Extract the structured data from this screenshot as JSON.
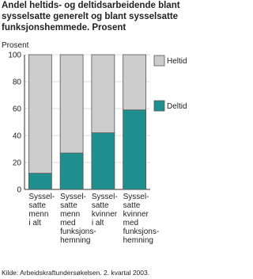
{
  "chart_data": {
    "type": "stacked_bar",
    "title": [
      "Andel heltids- og deltidsarbeidende blant",
      "sysselsatte generelt og blant sysselsatte",
      "funksjonshemmede. Prosent"
    ],
    "y_label": "Prosent",
    "categories": [
      [
        "Syssel-",
        "satte",
        "menn",
        "i alt"
      ],
      [
        "Syssel-",
        "satte",
        "menn",
        "med",
        "funksjons-",
        "hemning"
      ],
      [
        "Syssel-",
        "satte",
        "kvinner",
        "i alt"
      ],
      [
        "Syssel-",
        "satte",
        "kvinner",
        "med",
        "funksjons-",
        "hemning"
      ]
    ],
    "series": [
      {
        "name": "Deltid",
        "color": "#1f8f8f",
        "values": [
          12,
          27,
          42,
          59
        ]
      },
      {
        "name": "Heltid",
        "color": "#cccccc",
        "values": [
          88,
          73,
          58,
          41
        ]
      }
    ],
    "ylim": [
      0,
      100
    ],
    "yticks": [
      0,
      20,
      40,
      60,
      80,
      100
    ],
    "grid": true,
    "source": "Kilde: Arbeidskraftundersøkelsen. 2. kvartal 2003."
  }
}
